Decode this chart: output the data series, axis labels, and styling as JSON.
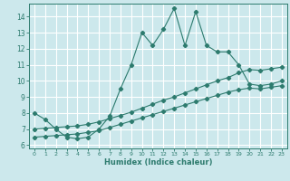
{
  "xlabel": "Humidex (Indice chaleur)",
  "background_color": "#cce8ec",
  "grid_color": "#ffffff",
  "line_color": "#2d7b6e",
  "xlim": [
    -0.5,
    23.5
  ],
  "ylim": [
    5.8,
    14.8
  ],
  "xticks": [
    0,
    1,
    2,
    3,
    4,
    5,
    6,
    7,
    8,
    9,
    10,
    11,
    12,
    13,
    14,
    15,
    16,
    17,
    18,
    19,
    20,
    21,
    22,
    23
  ],
  "yticks": [
    6,
    7,
    8,
    9,
    10,
    11,
    12,
    13,
    14
  ],
  "line1_x": [
    0,
    1,
    2,
    3,
    4,
    5,
    6,
    7,
    8,
    9,
    10,
    11,
    12,
    13,
    14,
    15,
    16,
    17,
    18,
    19,
    20,
    21,
    22,
    23
  ],
  "line1_y": [
    8.0,
    7.6,
    7.0,
    6.5,
    6.4,
    6.5,
    7.0,
    7.8,
    9.5,
    11.0,
    13.0,
    12.2,
    13.2,
    14.5,
    12.2,
    14.3,
    12.2,
    11.8,
    11.8,
    11.0,
    9.8,
    9.7,
    9.8,
    10.0
  ],
  "line2_x": [
    0,
    1,
    2,
    3,
    4,
    5,
    6,
    7,
    8,
    9,
    10,
    11,
    12,
    13,
    14,
    15,
    16,
    17,
    18,
    19,
    20,
    21,
    22,
    23
  ],
  "line2_y": [
    7.0,
    7.05,
    7.1,
    7.15,
    7.2,
    7.3,
    7.45,
    7.65,
    7.85,
    8.05,
    8.3,
    8.55,
    8.8,
    9.0,
    9.25,
    9.5,
    9.75,
    10.0,
    10.2,
    10.5,
    10.7,
    10.65,
    10.75,
    10.85
  ],
  "line3_x": [
    0,
    1,
    2,
    3,
    4,
    5,
    6,
    7,
    8,
    9,
    10,
    11,
    12,
    13,
    14,
    15,
    16,
    17,
    18,
    19,
    20,
    21,
    22,
    23
  ],
  "line3_y": [
    6.5,
    6.55,
    6.6,
    6.65,
    6.7,
    6.8,
    6.9,
    7.1,
    7.3,
    7.5,
    7.7,
    7.9,
    8.1,
    8.3,
    8.5,
    8.7,
    8.9,
    9.1,
    9.3,
    9.45,
    9.55,
    9.5,
    9.6,
    9.7
  ]
}
